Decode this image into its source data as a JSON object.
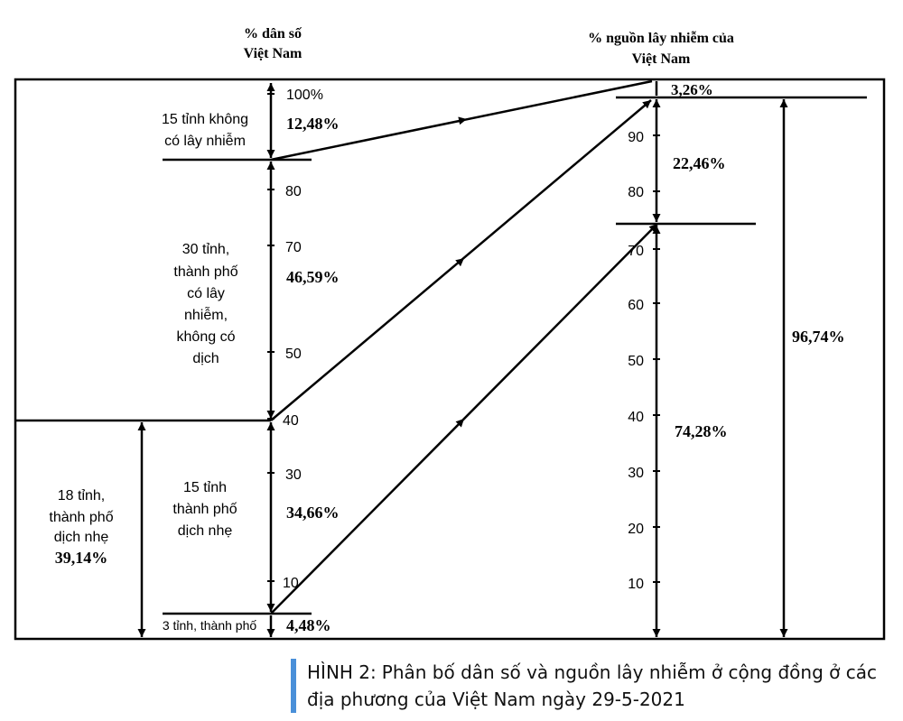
{
  "left_axis": {
    "title_line1": "% dân số",
    "title_line2": "Việt Nam",
    "ticks": [
      {
        "label": "100%",
        "value": 100
      },
      {
        "label": "80",
        "value": 80
      },
      {
        "label": "70",
        "value": 70
      },
      {
        "label": "50",
        "value": 50
      },
      {
        "label": "40",
        "value": 40
      },
      {
        "label": "30",
        "value": 30
      },
      {
        "label": "10",
        "value": 10
      }
    ],
    "segments": [
      {
        "pct": "12,48%",
        "label_lines": [
          "15 tỉnh không",
          "có lây nhiễm"
        ]
      },
      {
        "pct": "46,59%",
        "label_lines": [
          "30 tỉnh,",
          "thành phố",
          "có lây",
          "nhiễm,",
          "không có",
          "dịch"
        ]
      },
      {
        "pct": "34,66%",
        "label_lines": [
          "15 tỉnh",
          "thành phố",
          "dịch nhẹ"
        ]
      },
      {
        "pct": "4,48%",
        "label_lines": [
          "3 tỉnh, thành phố"
        ]
      }
    ],
    "group_label_lines": [
      "18 tỉnh,",
      "thành phố",
      "dịch nhẹ"
    ],
    "group_pct": "39,14%"
  },
  "right_axis": {
    "title_line1": "% nguồn lây nhiễm của",
    "title_line2": "Việt Nam",
    "ticks": [
      {
        "label": "90",
        "value": 90
      },
      {
        "label": "80",
        "value": 80
      },
      {
        "label": "70",
        "value": 70
      },
      {
        "label": "60",
        "value": 60
      },
      {
        "label": "50",
        "value": 50
      },
      {
        "label": "40",
        "value": 40
      },
      {
        "label": "30",
        "value": 30
      },
      {
        "label": "20",
        "value": 20
      },
      {
        "label": "10",
        "value": 10
      }
    ],
    "segments": [
      {
        "pct": "3,26%"
      },
      {
        "pct": "22,46%"
      },
      {
        "pct": "74,28%"
      }
    ],
    "total_pct": "96,74%"
  },
  "caption": {
    "label": "HÌNH 2:",
    "line1": "Phân bố dân số và nguồn lây nhiễm ở cộng đồng ở các",
    "line2": "địa phương của Việt Nam ngày 29-5-2021"
  }
}
